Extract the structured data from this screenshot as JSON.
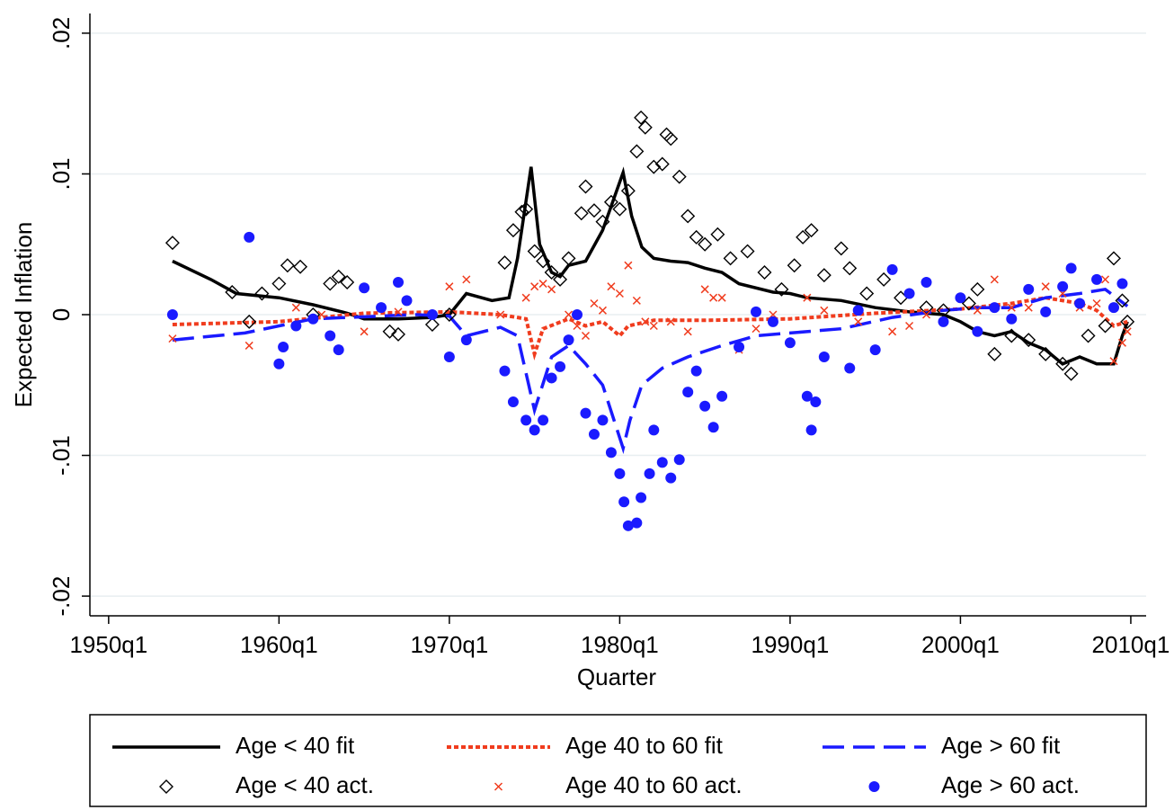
{
  "chart_data": {
    "type": "line",
    "y_label": "Expected Inflation",
    "x_label": "Quarter",
    "xlim": [
      1948.9,
      2010.9
    ],
    "ylim": [
      -0.0214,
      0.0214
    ],
    "xticks": [
      {
        "value": 1950,
        "label": "1950q1"
      },
      {
        "value": 1960,
        "label": "1960q1"
      },
      {
        "value": 1970,
        "label": "1970q1"
      },
      {
        "value": 1980,
        "label": "1980q1"
      },
      {
        "value": 1990,
        "label": "1990q1"
      },
      {
        "value": 2000,
        "label": "2000q1"
      },
      {
        "value": 2010,
        "label": "2010q1"
      }
    ],
    "yticks": [
      {
        "value": -0.02,
        "label": "-.02"
      },
      {
        "value": -0.01,
        "label": "-.01"
      },
      0,
      {
        "value": 0.01,
        "label": ".01"
      },
      {
        "value": 0.02,
        "label": ".02"
      }
    ],
    "grid": true,
    "series": [
      {
        "name": "Age < 40 fit",
        "kind": "line",
        "dash": "solid",
        "color": "#000000",
        "x": [
          1953.75,
          1956,
          1957.5,
          1960,
          1962,
          1964,
          1965,
          1967,
          1969,
          1970,
          1971,
          1972.5,
          1973.5,
          1974,
          1974.8,
          1975.3,
          1976,
          1976.5,
          1977,
          1978,
          1979,
          1980.2,
          1980.7,
          1981.3,
          1982,
          1983,
          1984,
          1985,
          1986,
          1987,
          1989,
          1990,
          1991,
          1993,
          1995,
          1997,
          1999,
          2000,
          2001,
          2002,
          2003,
          2004,
          2005,
          2006,
          2007,
          2008,
          2009,
          2009.5,
          2009.8
        ],
        "values": [
          0.0038,
          0.0025,
          0.0015,
          0.0012,
          0.0007,
          0.0001,
          -0.0003,
          -0.0003,
          -0.0002,
          0,
          0.0015,
          0.001,
          0.0012,
          0.004,
          0.0105,
          0.005,
          0.003,
          0.0027,
          0.0035,
          0.0038,
          0.006,
          0.0101,
          0.007,
          0.0048,
          0.004,
          0.0038,
          0.0037,
          0.0033,
          0.003,
          0.0022,
          0.0016,
          0.0015,
          0.0012,
          0.001,
          0.0005,
          0.0002,
          0,
          -0.0005,
          -0.0012,
          -0.0015,
          -0.0012,
          -0.002,
          -0.0025,
          -0.0035,
          -0.003,
          -0.0035,
          -0.0035,
          -0.0015,
          -0.0005
        ]
      },
      {
        "name": "Age 40 to 60 fit",
        "kind": "line",
        "dash": "dot",
        "color": "#f03c1e",
        "x": [
          1953.75,
          1960,
          1965,
          1970,
          1973,
          1974.5,
          1975,
          1975.5,
          1977,
          1978,
          1979,
          1980,
          1980.5,
          1982,
          1985,
          1990,
          1995,
          2000,
          2003,
          2005,
          2007,
          2008,
          2009,
          2009.8
        ],
        "values": [
          -0.0007,
          -0.0005,
          0.0001,
          0.0002,
          0,
          -0.0003,
          -0.0028,
          -0.001,
          -0.0003,
          -0.0008,
          -0.0005,
          -0.0015,
          -0.0008,
          -0.0004,
          -0.0004,
          -0.0003,
          0.0001,
          0.0004,
          0.0008,
          0.0012,
          0.0008,
          0.0003,
          -0.0008,
          -0.0005
        ]
      },
      {
        "name": "Age > 60 fit",
        "kind": "line",
        "dash": "long",
        "color": "#1a1aff",
        "x": [
          1953.75,
          1958,
          1960,
          1962,
          1968,
          1970,
          1971,
          1973,
          1974,
          1975,
          1976,
          1977,
          1978,
          1979,
          1980.2,
          1980.6,
          1981.3,
          1982.5,
          1984,
          1986,
          1988,
          1990,
          1993,
          1996,
          1999,
          2001,
          2003,
          2005,
          2007,
          2008.5,
          2009.8
        ],
        "values": [
          -0.0018,
          -0.0013,
          -0.0008,
          -0.0003,
          0,
          -0.0001,
          -0.0015,
          -0.0009,
          -0.0015,
          -0.0068,
          -0.003,
          -0.0022,
          -0.0035,
          -0.005,
          -0.0095,
          -0.0075,
          -0.005,
          -0.0038,
          -0.003,
          -0.0022,
          -0.0015,
          -0.0013,
          -0.001,
          -0.0002,
          0.0003,
          0.0005,
          0.0005,
          0.0012,
          0.0015,
          0.0018,
          0.0006
        ]
      },
      {
        "name": "Age < 40 act.",
        "kind": "scatter",
        "marker": "diamond",
        "color": "#000000",
        "x": [
          1953.75,
          1957.25,
          1958.25,
          1959,
          1960,
          1960.5,
          1961.25,
          1962,
          1963,
          1963.5,
          1964,
          1966.5,
          1967,
          1969,
          1970,
          1973.25,
          1973.75,
          1974.25,
          1974.5,
          1975,
          1975.5,
          1976,
          1976.5,
          1977,
          1977.75,
          1978,
          1978.5,
          1979,
          1979.5,
          1980,
          1980.5,
          1981,
          1981.25,
          1981.5,
          1982,
          1982.5,
          1982.75,
          1983,
          1983.5,
          1984,
          1984.5,
          1985,
          1985.75,
          1986.5,
          1987.5,
          1988.5,
          1989.5,
          1990.25,
          1990.75,
          1991.25,
          1992,
          1993,
          1993.5,
          1994.5,
          1995.5,
          1996.5,
          1998,
          1999,
          2000.5,
          2001,
          2002,
          2003,
          2004,
          2005,
          2006,
          2006.5,
          2007.5,
          2008.5,
          2009,
          2009.5,
          2009.8
        ],
        "values": [
          0.0051,
          0.0016,
          -0.0005,
          0.0015,
          0.0022,
          0.0035,
          0.0034,
          0,
          0.0022,
          0.0027,
          0.0023,
          -0.0012,
          -0.0014,
          -0.0007,
          0,
          0.0037,
          0.006,
          0.0073,
          0.0075,
          0.0045,
          0.0038,
          0.003,
          0.0025,
          0.004,
          0.0072,
          0.0091,
          0.0074,
          0.0066,
          0.008,
          0.0075,
          0.0088,
          0.0116,
          0.014,
          0.0133,
          0.0105,
          0.0107,
          0.0128,
          0.0125,
          0.0098,
          0.007,
          0.0055,
          0.005,
          0.0057,
          0.004,
          0.0045,
          0.003,
          0.0018,
          0.0035,
          0.0055,
          0.006,
          0.0028,
          0.0047,
          0.0033,
          0.0015,
          0.0025,
          0.0012,
          0.0005,
          0.0003,
          0.0008,
          0.0018,
          -0.0028,
          -0.0015,
          -0.0018,
          -0.0028,
          -0.0035,
          -0.0042,
          -0.0015,
          -0.0008,
          0.004,
          0.001,
          -0.0005
        ]
      },
      {
        "name": "Age 40 to 60 act.",
        "kind": "scatter",
        "marker": "cross",
        "color": "#f03c1e",
        "x": [
          1953.75,
          1958.25,
          1961,
          1962.5,
          1965,
          1967,
          1970,
          1971,
          1973,
          1974.5,
          1975,
          1975.5,
          1976,
          1977,
          1977.5,
          1978,
          1978.5,
          1979,
          1979.5,
          1980,
          1980.5,
          1981,
          1981.5,
          1982,
          1983,
          1984,
          1985,
          1985.5,
          1986,
          1987,
          1988,
          1989,
          1991,
          1992,
          1994,
          1996,
          1997,
          1998,
          2000,
          2001,
          2002,
          2003,
          2004,
          2005,
          2006,
          2007,
          2008,
          2008.5,
          2009,
          2009.5,
          2009.8
        ],
        "values": [
          -0.0017,
          -0.0022,
          0.0005,
          0,
          -0.0012,
          0.0002,
          0.002,
          0.0025,
          0,
          0.0012,
          0.002,
          0.0022,
          0.0018,
          0,
          -0.0008,
          -0.0015,
          0.0008,
          0.0003,
          0.002,
          0.0015,
          0.0035,
          0.001,
          -0.0005,
          -0.0008,
          -0.0005,
          -0.0012,
          0.0018,
          0.0012,
          0.0012,
          -0.0025,
          -0.001,
          0,
          0.0012,
          0.0003,
          -0.0005,
          -0.0012,
          -0.0008,
          0,
          0.0012,
          0.0003,
          0.0025,
          0.0005,
          0.0005,
          0.002,
          0.0015,
          0.0005,
          0.0008,
          0.0025,
          -0.0033,
          -0.002,
          -0.0012
        ]
      },
      {
        "name": "Age > 60 act.",
        "kind": "scatter",
        "marker": "circle",
        "color": "#1a1aff",
        "x": [
          1953.75,
          1958.25,
          1960,
          1960.25,
          1961,
          1962,
          1963,
          1963.5,
          1965,
          1966,
          1967,
          1967.5,
          1969,
          1970,
          1971,
          1973.25,
          1973.75,
          1974.5,
          1975,
          1975.5,
          1976,
          1976.5,
          1977,
          1977.5,
          1978,
          1978.5,
          1979,
          1979.5,
          1980,
          1980.25,
          1980.5,
          1981,
          1981.25,
          1981.75,
          1982,
          1982.5,
          1983,
          1983.5,
          1984,
          1984.5,
          1985,
          1985.5,
          1986,
          1987,
          1988,
          1989,
          1990,
          1991,
          1991.25,
          1991.5,
          1992,
          1993.5,
          1994,
          1995,
          1996,
          1997,
          1998,
          1999,
          2000,
          2001,
          2002,
          2003,
          2004,
          2005,
          2006,
          2006.5,
          2007,
          2008,
          2009,
          2009.5
        ],
        "values": [
          0,
          0.0055,
          -0.0035,
          -0.0023,
          -0.0008,
          -0.0003,
          -0.0015,
          -0.0025,
          0.0019,
          0.0005,
          0.0023,
          0.001,
          0,
          -0.003,
          -0.0018,
          -0.004,
          -0.0062,
          -0.0075,
          -0.0082,
          -0.0075,
          -0.0045,
          -0.0037,
          -0.0018,
          0,
          -0.007,
          -0.0085,
          -0.0075,
          -0.0098,
          -0.0113,
          -0.0133,
          -0.015,
          -0.0148,
          -0.013,
          -0.0113,
          -0.0082,
          -0.0105,
          -0.0116,
          -0.0103,
          -0.0055,
          -0.004,
          -0.0065,
          -0.008,
          -0.0058,
          -0.0023,
          0.0002,
          -0.0005,
          -0.002,
          -0.0058,
          -0.0082,
          -0.0062,
          -0.003,
          -0.0038,
          0.0003,
          -0.0025,
          0.0032,
          0.0015,
          0.0023,
          -0.0005,
          0.0012,
          -0.0012,
          0.0005,
          -0.0003,
          0.0018,
          0.0002,
          0.002,
          0.0033,
          0.0008,
          0.0025,
          0.0005,
          0.0022
        ]
      }
    ]
  }
}
